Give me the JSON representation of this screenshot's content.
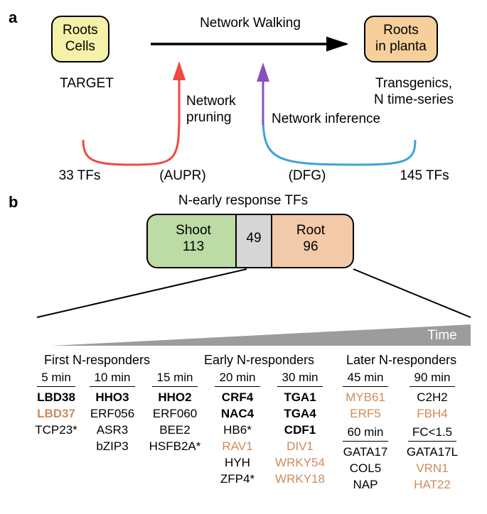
{
  "panelA": {
    "label": "a",
    "left_box": {
      "text": "Roots\nCells",
      "bg": "#f6f1a8"
    },
    "right_box": {
      "text": "Roots\nin planta",
      "bg": "#f6cf9b"
    },
    "title": "Network Walking",
    "arrow_color": "#000000",
    "left_sub": "TARGET",
    "right_sub": "Transgenics,\nN time-series",
    "pruning_label": "Network\npruning",
    "inference_label": "Network inference",
    "bottom_left": "33 TFs",
    "bottom_mid": "(AUPR)",
    "bottom_mid2": "(DFG)",
    "bottom_right": "145 TFs",
    "curve_colors": {
      "red": "#ee4a42",
      "blue": "#3da2d8",
      "purple": "#8a4fbf"
    }
  },
  "panelB": {
    "label": "b",
    "venn_title": "N-early response TFs",
    "venn": {
      "shoot_label": "Shoot",
      "shoot_n": "113",
      "shoot_bg": "#bcdba5",
      "overlap": "49",
      "overlap_bg": "#d6d6d6",
      "root_label": "Root",
      "root_n": "96",
      "root_bg": "#f2c9a9"
    },
    "time_label": "Time",
    "triangle_fill": "#9c9c9c",
    "groups": {
      "first": "First N-responders",
      "early": "Early N-responders",
      "later": "Later N-responders"
    },
    "colors": {
      "normal": "#000000",
      "highlight": "#cf8b59"
    },
    "columns": [
      {
        "head": "5 min",
        "rows": [
          {
            "t": "LBD38",
            "b": true
          },
          {
            "t": "LBD37",
            "b": true,
            "c": "hl"
          },
          {
            "t": "TCP23*"
          }
        ]
      },
      {
        "head": "10 min",
        "rows": [
          {
            "t": "HHO3",
            "b": true
          },
          {
            "t": "ERF056"
          },
          {
            "t": "ASR3"
          },
          {
            "t": "bZIP3"
          }
        ]
      },
      {
        "head": "15 min",
        "rows": [
          {
            "t": "HHO2",
            "b": true
          },
          {
            "t": "ERF060"
          },
          {
            "t": "BEE2"
          },
          {
            "t": "HSFB2A*"
          }
        ]
      },
      {
        "head": "20 min",
        "rows": [
          {
            "t": "CRF4",
            "b": true
          },
          {
            "t": "NAC4",
            "b": true
          },
          {
            "t": "HB6*"
          },
          {
            "t": "RAV1",
            "c": "hl"
          },
          {
            "t": "HYH"
          },
          {
            "t": "ZFP4*"
          }
        ]
      },
      {
        "head": "30 min",
        "rows": [
          {
            "t": "TGA1",
            "b": true
          },
          {
            "t": "TGA4",
            "b": true
          },
          {
            "t": "CDF1",
            "b": true
          },
          {
            "t": "DIV1",
            "c": "hl"
          },
          {
            "t": "WRKY54",
            "c": "hl"
          },
          {
            "t": "WRKY18",
            "c": "hl"
          }
        ]
      },
      {
        "head": "45 min",
        "rows": [
          {
            "t": "MYB61",
            "c": "hl"
          },
          {
            "t": "ERF5",
            "c": "hl"
          }
        ],
        "head2": "60 min",
        "rows2": [
          {
            "t": "GATA17"
          },
          {
            "t": "COL5"
          },
          {
            "t": "NAP"
          }
        ]
      },
      {
        "head": "90 min",
        "rows": [
          {
            "t": "C2H2"
          },
          {
            "t": "FBH4",
            "c": "hl"
          }
        ],
        "head2": "FC<1.5",
        "rows2": [
          {
            "t": "GATA17L"
          },
          {
            "t": "VRN1",
            "c": "hl"
          },
          {
            "t": "HAT22",
            "c": "hl"
          }
        ]
      }
    ]
  }
}
